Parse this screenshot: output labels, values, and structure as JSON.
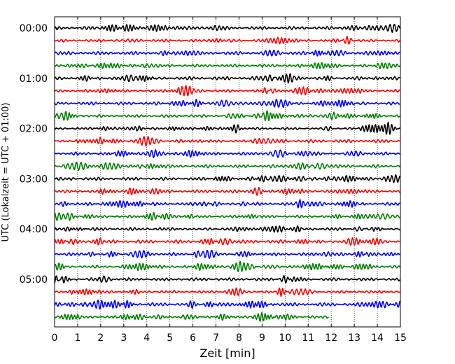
{
  "chart_data": {
    "type": "line",
    "title": "",
    "xlabel": "Zeit  [min]",
    "ylabel": "UTC (Lokalzeit = UTC + 01:00)",
    "xlim": [
      0,
      15
    ],
    "x_ticks": [
      0,
      1,
      2,
      3,
      4,
      5,
      6,
      7,
      8,
      9,
      10,
      11,
      12,
      13,
      14,
      15
    ],
    "y_tick_labels": [
      "00:00",
      "01:00",
      "02:00",
      "03:00",
      "04:00",
      "05:00"
    ],
    "grid": "vertical dotted",
    "trace_interval_minutes": 15,
    "trace_colors": [
      "#000000",
      "#ff0000",
      "#0000ff",
      "#008000"
    ],
    "trace_count": 24,
    "last_trace_end_minute": 11.9,
    "series_starts": [
      "00:00",
      "00:15",
      "00:30",
      "00:45",
      "01:00",
      "01:15",
      "01:30",
      "01:45",
      "02:00",
      "02:15",
      "02:30",
      "02:45",
      "03:00",
      "03:15",
      "03:30",
      "03:45",
      "04:00",
      "04:15",
      "04:30",
      "04:45",
      "05:00",
      "05:15",
      "05:30",
      "05:45"
    ]
  }
}
